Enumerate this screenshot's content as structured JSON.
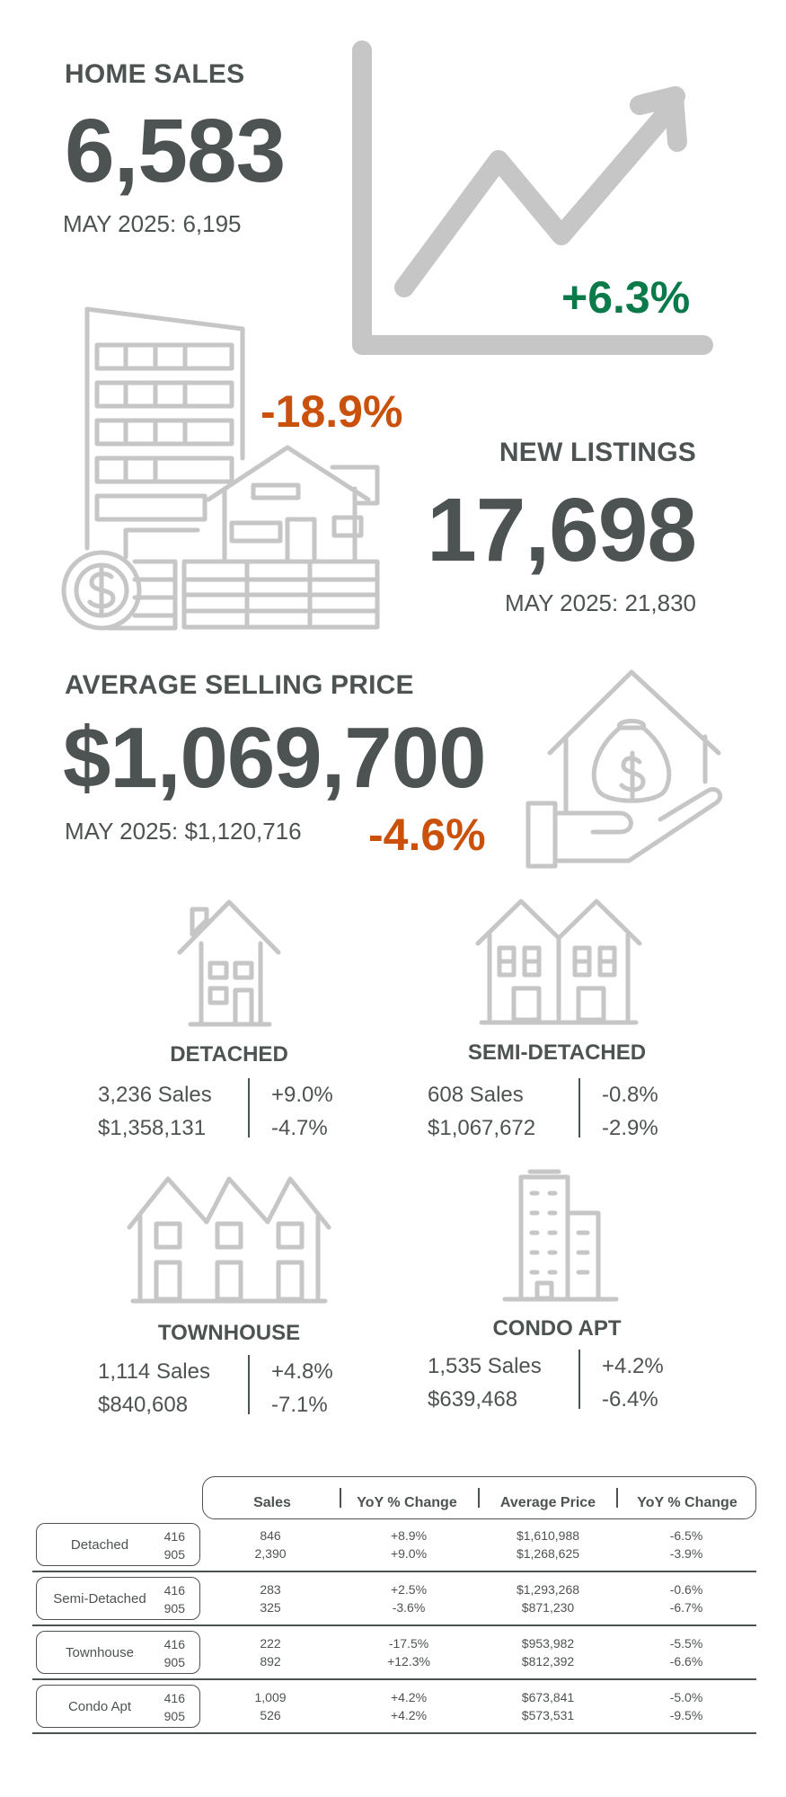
{
  "home_sales": {
    "title": "HOME SALES",
    "value": "6,583",
    "prior": "MAY 2025: 6,195",
    "change": "+6.3%"
  },
  "new_listings": {
    "title": "NEW LISTINGS",
    "value": "17,698",
    "prior": "MAY 2025: 21,830",
    "change": "-18.9%"
  },
  "avg_price": {
    "title": "AVERAGE SELLING PRICE",
    "value": "$1,069,700",
    "prior": "MAY 2025: $1,120,716",
    "change": "-4.6%"
  },
  "types": {
    "detached": {
      "label": "DETACHED",
      "sales": "3,236 Sales",
      "price": "$1,358,131",
      "sales_change": "+9.0%",
      "price_change": "-4.7%"
    },
    "semi": {
      "label": "SEMI-DETACHED",
      "sales": "608 Sales",
      "price": "$1,067,672",
      "sales_change": "-0.8%",
      "price_change": "-2.9%"
    },
    "townhouse": {
      "label": "TOWNHOUSE",
      "sales": "1,114 Sales",
      "price": "$840,608",
      "sales_change": "+4.8%",
      "price_change": "-7.1%"
    },
    "condo": {
      "label": "CONDO APT",
      "sales": "1,535 Sales",
      "price": "$639,468",
      "sales_change": "+4.2%",
      "price_change": "-6.4%"
    }
  },
  "colors": {
    "text": "#4d5352",
    "icon": "#c6c6c6",
    "up": "#0b7a4b",
    "down": "#c9510c"
  },
  "table": {
    "headers": [
      "Sales",
      "YoY % Change",
      "Average Price",
      "YoY % Change"
    ],
    "rows": [
      {
        "name": "Detached",
        "codes": [
          "416",
          "905"
        ],
        "sales": [
          "846",
          "2,390"
        ],
        "sales_yoy": [
          "+8.9%",
          "+9.0%"
        ],
        "price": [
          "$1,610,988",
          "$1,268,625"
        ],
        "price_yoy": [
          "-6.5%",
          "-3.9%"
        ]
      },
      {
        "name": "Semi-Detached",
        "codes": [
          "416",
          "905"
        ],
        "sales": [
          "283",
          "325"
        ],
        "sales_yoy": [
          "+2.5%",
          "-3.6%"
        ],
        "price": [
          "$1,293,268",
          "$871,230"
        ],
        "price_yoy": [
          "-0.6%",
          "-6.7%"
        ]
      },
      {
        "name": "Townhouse",
        "codes": [
          "416",
          "905"
        ],
        "sales": [
          "222",
          "892"
        ],
        "sales_yoy": [
          "-17.5%",
          "+12.3%"
        ],
        "price": [
          "$953,982",
          "$812,392"
        ],
        "price_yoy": [
          "-5.5%",
          "-6.6%"
        ]
      },
      {
        "name": "Condo Apt",
        "codes": [
          "416",
          "905"
        ],
        "sales": [
          "1,009",
          "526"
        ],
        "sales_yoy": [
          "+4.2%",
          "+4.2%"
        ],
        "price": [
          "$673,841",
          "$573,531"
        ],
        "price_yoy": [
          "-5.0%",
          "-9.5%"
        ]
      }
    ]
  }
}
